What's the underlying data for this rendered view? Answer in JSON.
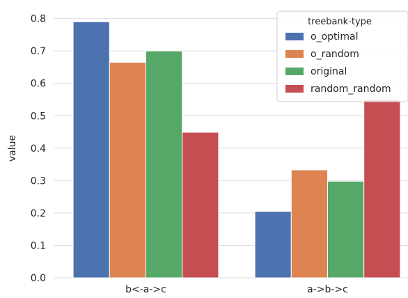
{
  "chart_data": {
    "type": "bar",
    "title": "",
    "xlabel": "",
    "ylabel": "value",
    "categories": [
      "b<-a->c",
      "a->b->c"
    ],
    "ylim": [
      0,
      0.84
    ],
    "yticks": [
      "0.0",
      "0.1",
      "0.2",
      "0.3",
      "0.4",
      "0.5",
      "0.6",
      "0.7",
      "0.8"
    ],
    "grid": true,
    "legend": {
      "title": "treebank-type",
      "placement": "top-right"
    },
    "series": [
      {
        "name": "o_optimal",
        "color": "#4c72b0",
        "values": [
          0.79,
          0.205
        ]
      },
      {
        "name": "o_random",
        "color": "#dd8452",
        "values": [
          0.665,
          0.333
        ]
      },
      {
        "name": "original",
        "color": "#55a868",
        "values": [
          0.7,
          0.298
        ]
      },
      {
        "name": "random_random",
        "color": "#c44e52",
        "values": [
          0.449,
          0.55
        ]
      }
    ]
  }
}
